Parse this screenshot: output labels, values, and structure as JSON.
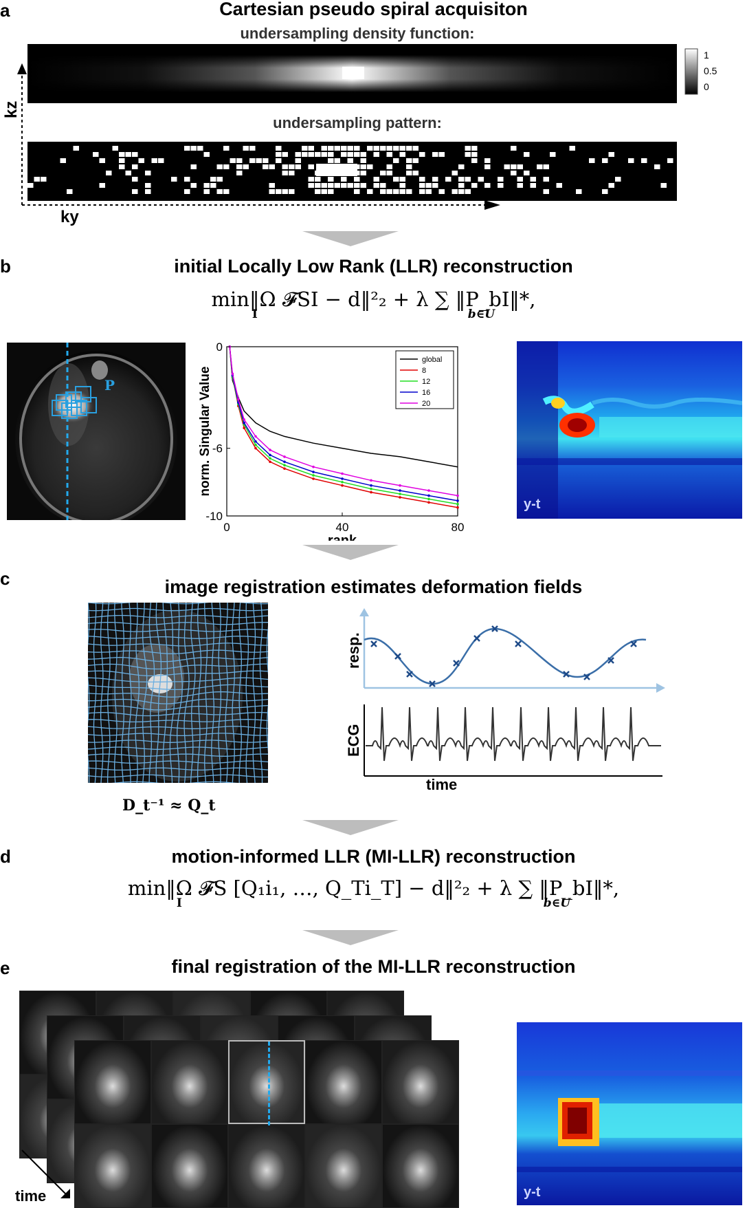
{
  "panels": {
    "a": {
      "label": "a",
      "title": "Cartesian pseudo spiral acquisiton",
      "density_title": "undersampling density function:",
      "pattern_title": "undersampling pattern:",
      "colorbar_ticks": [
        "1",
        "0.5",
        "0"
      ],
      "axis_kz": "kz",
      "axis_ky": "ky"
    },
    "b": {
      "label": "b",
      "title": "initial Locally Low Rank (LLR) reconstruction",
      "equation": "min‖Ω 𝓕SI − d‖²₂ + λ ∑ ‖P_bI‖*,",
      "eq_sub_min": "I",
      "eq_sub_sum": "b∈U",
      "patch_label": "P",
      "yt_label": "y-t"
    },
    "c": {
      "label": "c",
      "title": "image registration estimates deformation fields",
      "resp_label": "resp.",
      "ecg_label": "ECG",
      "time_label": "time",
      "formula": "D_t⁻¹ ≈ Q_t"
    },
    "d": {
      "label": "d",
      "title": "motion-informed LLR (MI-LLR) reconstruction",
      "equation": "min‖Ω 𝓕S [Q₁i₁, …, Q_Ti_T] − d‖²₂ + λ ∑ ‖P_bI‖*,",
      "eq_sub_min": "I",
      "eq_sub_sum": "b∈U"
    },
    "e": {
      "label": "e",
      "title": "final registration of the MI-LLR reconstruction",
      "time_label": "time",
      "yt_label": "y-t"
    }
  },
  "chart_data": {
    "type": "line",
    "xlabel": "rank",
    "ylabel": "norm. Singular Value",
    "xlim": [
      0,
      80
    ],
    "ylim": [
      -10,
      0
    ],
    "xticks": [
      "0",
      "40",
      "80"
    ],
    "yticks": [
      "0",
      "-6",
      "-10"
    ],
    "legend_position": "top-right",
    "x": [
      1,
      2,
      4,
      6,
      10,
      15,
      20,
      30,
      40,
      50,
      60,
      70,
      80
    ],
    "series": [
      {
        "name": "global",
        "color": "#000000",
        "values": [
          0,
          -2.0,
          -3.0,
          -3.8,
          -4.5,
          -5.0,
          -5.3,
          -5.7,
          -6.0,
          -6.3,
          -6.5,
          -6.8,
          -7.1
        ]
      },
      {
        "name": "8",
        "color": "#e00000",
        "values": [
          0,
          -1.8,
          -3.5,
          -4.8,
          -6.0,
          -6.8,
          -7.2,
          -7.8,
          -8.2,
          -8.6,
          -8.9,
          -9.2,
          -9.5
        ]
      },
      {
        "name": "12",
        "color": "#22dd22",
        "values": [
          0,
          -1.8,
          -3.4,
          -4.6,
          -5.8,
          -6.6,
          -7.0,
          -7.6,
          -8.0,
          -8.4,
          -8.7,
          -9.0,
          -9.3
        ]
      },
      {
        "name": "16",
        "color": "#0000cc",
        "values": [
          0,
          -1.7,
          -3.3,
          -4.5,
          -5.6,
          -6.4,
          -6.8,
          -7.4,
          -7.8,
          -8.2,
          -8.5,
          -8.8,
          -9.1
        ]
      },
      {
        "name": "20",
        "color": "#e000e0",
        "values": [
          0,
          -1.6,
          -3.1,
          -4.3,
          -5.3,
          -6.1,
          -6.5,
          -7.1,
          -7.5,
          -7.9,
          -8.2,
          -8.5,
          -8.8
        ]
      }
    ]
  }
}
